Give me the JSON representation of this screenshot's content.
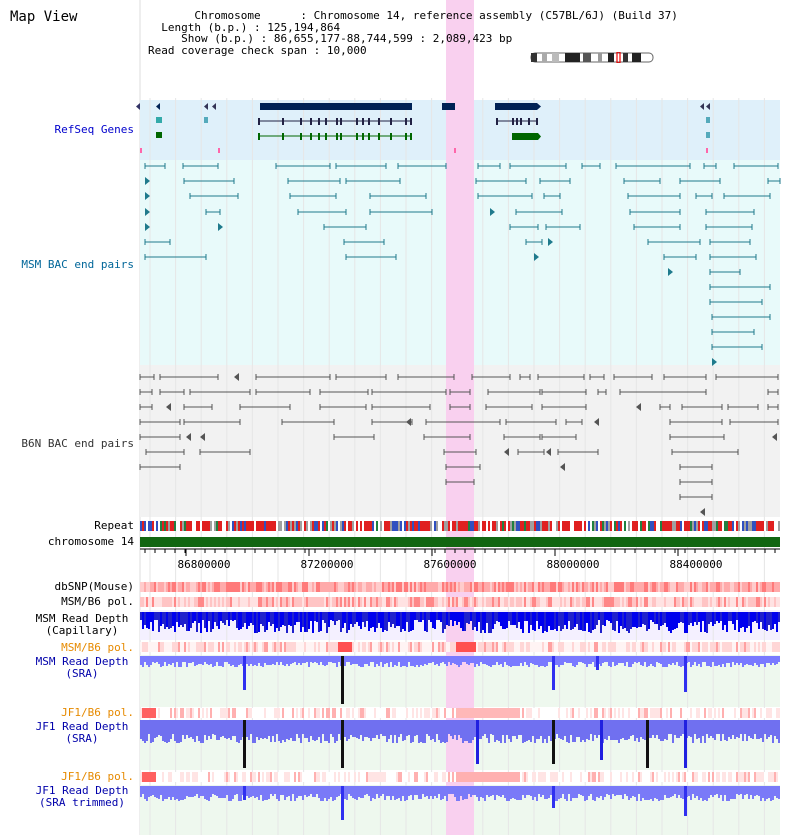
{
  "app": {
    "title": "Map View"
  },
  "info": {
    "chromosome_label": "Chromosome",
    "chromosome_value": "Chromosome 14, reference assembly (C57BL/6J) (Build 37)",
    "length_label": "Length (b.p.)",
    "length_value": "125,194,864",
    "show_label": "Show (b.p.)",
    "show_value": "86,655,177-88,744,599 : 2,089,423 bp",
    "coverage_label": "Read coverage check span",
    "coverage_value": "10,000"
  },
  "tracks": {
    "refseq": "RefSeq Genes",
    "msm_bac": "MSM BAC end pairs",
    "b6n_bac": "B6N BAC end pairs",
    "repeat": "Repeat",
    "chromosome": "chromosome 14",
    "dbsnp": "dbSNP(Mouse)",
    "msm_b6_pol": "MSM/B6 pol.",
    "msm_depth_cap": "MSM Read Depth\n(Capillary)",
    "msm_b6_pol2": "MSM/B6 pol.",
    "msm_depth_sra": "MSM Read Depth\n(SRA)",
    "jf1_b6_pol": "JF1/B6 pol.",
    "jf1_depth_sra": "JF1 Read Depth\n(SRA)",
    "jf1_b6_pol2": "JF1/B6 pol.",
    "jf1_depth_trim": "JF1 Read Depth\n(SRA trimmed)"
  },
  "ruler": {
    "ticks": [
      "86800000",
      "87200000",
      "87600000",
      "88000000",
      "88400000"
    ]
  },
  "colors": {
    "refseq_label": "#0000cc",
    "msm_label": "#006699",
    "b6n_label": "#333333",
    "pol_orange": "#e68a00",
    "depth_blue": "#0000aa",
    "highlight": "#f9d0ef",
    "gene_dark": "#002255",
    "gene_green": "#006600"
  },
  "icons": {
    "ideogram": "chromosome-ideogram"
  }
}
